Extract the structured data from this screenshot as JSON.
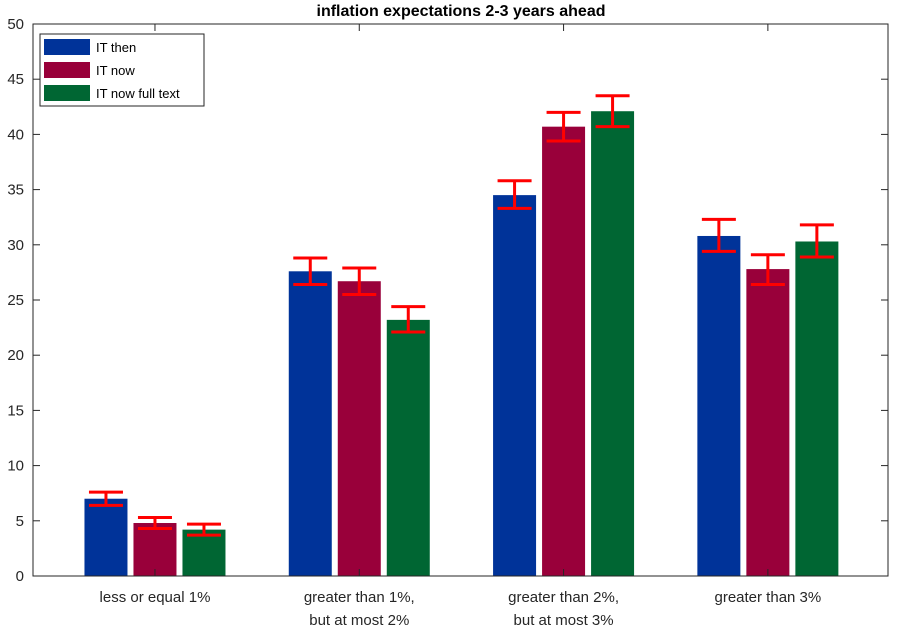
{
  "chart_data": {
    "type": "bar",
    "title": "inflation expectations 2-3 years ahead",
    "xlabel": "",
    "ylabel": "",
    "ylim": [
      0,
      50
    ],
    "yticks": [
      0,
      5,
      10,
      15,
      20,
      25,
      30,
      35,
      40,
      45,
      50
    ],
    "ytick_labels": [
      "0",
      "5",
      "10",
      "15",
      "20",
      "25",
      "30",
      "35",
      "40",
      "45",
      "50"
    ],
    "grid": false,
    "legend_position": "top-left",
    "error_bar_color": "#ff0000",
    "categories": [
      [
        "less or equal 1%"
      ],
      [
        "greater than 1%,",
        "but at most 2%"
      ],
      [
        "greater than 2%,",
        "but at most 3%"
      ],
      [
        "greater than 3%"
      ]
    ],
    "series": [
      {
        "name": "IT then",
        "color": "#003399",
        "values": [
          7.0,
          27.6,
          34.5,
          30.8
        ],
        "error_low": [
          6.4,
          26.4,
          33.3,
          29.4
        ],
        "error_high": [
          7.6,
          28.8,
          35.8,
          32.3
        ]
      },
      {
        "name": "IT now",
        "color": "#99003a",
        "values": [
          4.8,
          26.7,
          40.7,
          27.8
        ],
        "error_low": [
          4.3,
          25.5,
          39.4,
          26.4
        ],
        "error_high": [
          5.3,
          27.9,
          42.0,
          29.1
        ]
      },
      {
        "name": "IT now full text",
        "color": "#006633",
        "values": [
          4.2,
          23.2,
          42.1,
          30.3
        ],
        "error_low": [
          3.7,
          22.1,
          40.7,
          28.9
        ],
        "error_high": [
          4.7,
          24.4,
          43.5,
          31.8
        ]
      }
    ]
  }
}
